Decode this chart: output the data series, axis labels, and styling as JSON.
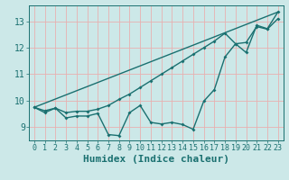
{
  "title": "",
  "xlabel": "Humidex (Indice chaleur)",
  "bg_color": "#cce8e8",
  "plot_bg_color": "#cce8e8",
  "line_color": "#1a7070",
  "grid_color": "#e8b0b0",
  "xmin": -0.5,
  "xmax": 23.5,
  "ymin": 8.5,
  "ymax": 13.6,
  "yticks": [
    9,
    10,
    11,
    12,
    13
  ],
  "xticks": [
    0,
    1,
    2,
    3,
    4,
    5,
    6,
    7,
    8,
    9,
    10,
    11,
    12,
    13,
    14,
    15,
    16,
    17,
    18,
    19,
    20,
    21,
    22,
    23
  ],
  "line1_x": [
    0,
    23
  ],
  "line1_y": [
    9.75,
    13.35
  ],
  "line2_x": [
    0,
    1,
    2,
    3,
    4,
    5,
    6,
    7,
    8,
    9,
    10,
    11,
    12,
    13,
    14,
    15,
    16,
    17,
    18,
    19,
    20,
    21,
    22,
    23
  ],
  "line2_y": [
    9.75,
    9.62,
    9.72,
    9.55,
    9.6,
    9.6,
    9.68,
    9.82,
    10.05,
    10.25,
    10.5,
    10.75,
    11.0,
    11.25,
    11.5,
    11.75,
    12.0,
    12.25,
    12.55,
    12.15,
    12.2,
    12.8,
    12.7,
    13.1
  ],
  "line3_x": [
    0,
    1,
    2,
    3,
    4,
    5,
    6,
    7,
    8,
    9,
    10,
    11,
    12,
    13,
    14,
    15,
    16,
    17,
    18,
    19,
    20,
    21,
    22,
    23
  ],
  "line3_y": [
    9.75,
    9.55,
    9.72,
    9.35,
    9.42,
    9.42,
    9.52,
    8.72,
    8.68,
    9.55,
    9.82,
    9.18,
    9.12,
    9.18,
    9.1,
    8.92,
    9.98,
    10.42,
    11.65,
    12.15,
    11.82,
    12.85,
    12.72,
    13.35
  ],
  "xlabel_fontsize": 8,
  "tick_fontsize": 7,
  "label_color": "#1a7070"
}
